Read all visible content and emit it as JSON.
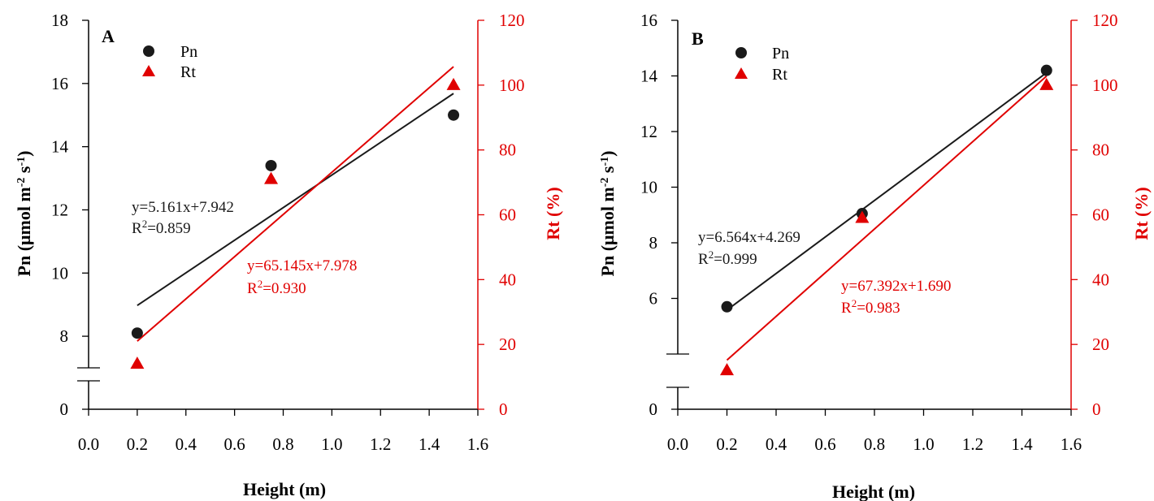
{
  "colors": {
    "pn": "#1a1a1a",
    "rt": "#e00000",
    "axis": "#000000"
  },
  "chart_data": [
    {
      "type": "scatter",
      "panel_label": "A",
      "xlabel": "Height (m)",
      "ylabel": {
        "main": "Pn (μmol m",
        "sup1": "-2",
        "mid": " s",
        "sup2": "-1",
        "end": ")"
      },
      "y2label": "Rt (%)",
      "xlim": [
        0.0,
        1.6
      ],
      "x_ticks": [
        "0.0",
        "0.2",
        "0.4",
        "0.6",
        "0.8",
        "1.0",
        "1.2",
        "1.4",
        "1.6"
      ],
      "ylim_broken": {
        "bottom_label": "0",
        "upper": [
          7,
          18
        ]
      },
      "y_ticks": [
        "0",
        "8",
        "10",
        "12",
        "14",
        "16",
        "18"
      ],
      "y2lim": [
        0,
        120
      ],
      "y2_ticks": [
        "0",
        "20",
        "40",
        "60",
        "80",
        "100",
        "120"
      ],
      "legend": [
        {
          "name": "Pn",
          "marker": "circle"
        },
        {
          "name": "Rt",
          "marker": "triangle"
        }
      ],
      "series": [
        {
          "name": "Pn",
          "axis": "left",
          "x": [
            0.2,
            0.75,
            1.5
          ],
          "y": [
            8.1,
            13.4,
            15.0
          ]
        },
        {
          "name": "Rt",
          "axis": "right",
          "x": [
            0.2,
            0.75,
            1.5
          ],
          "y": [
            14,
            71,
            100
          ]
        }
      ],
      "fits": [
        {
          "series": "Pn",
          "slope": 5.161,
          "intercept": 7.942,
          "x_range": [
            0.2,
            1.5
          ],
          "equation": "y=5.161x+7.942",
          "r2_prefix": "R",
          "r2_value": "=0.859"
        },
        {
          "series": "Rt",
          "slope": 65.145,
          "intercept": 7.978,
          "x_range": [
            0.2,
            1.5
          ],
          "equation": "y=65.145x+7.978",
          "r2_prefix": "R",
          "r2_value": "=0.930"
        }
      ]
    },
    {
      "type": "scatter",
      "panel_label": "B",
      "xlabel": "Height (m)",
      "ylabel": {
        "main": "Pn (μmol m",
        "sup1": "-2",
        "mid": " s",
        "sup2": "-1",
        "end": ")"
      },
      "y2label": "Rt (%)",
      "xlim": [
        0.0,
        1.6
      ],
      "x_ticks": [
        "0.0",
        "0.2",
        "0.4",
        "0.6",
        "0.8",
        "1.0",
        "1.2",
        "1.4",
        "1.6"
      ],
      "ylim_broken": {
        "bottom_label": "0",
        "upper": [
          4,
          16
        ]
      },
      "y_ticks": [
        "0",
        "6",
        "8",
        "10",
        "12",
        "14",
        "16"
      ],
      "y2lim": [
        0,
        120
      ],
      "y2_ticks": [
        "0",
        "20",
        "40",
        "60",
        "80",
        "100",
        "120"
      ],
      "legend": [
        {
          "name": "Pn",
          "marker": "circle"
        },
        {
          "name": "Rt",
          "marker": "triangle"
        }
      ],
      "series": [
        {
          "name": "Pn",
          "axis": "left",
          "x": [
            0.2,
            0.75,
            1.5
          ],
          "y": [
            5.7,
            9.05,
            14.2
          ]
        },
        {
          "name": "Rt",
          "axis": "right",
          "x": [
            0.2,
            0.75,
            1.5
          ],
          "y": [
            12,
            59,
            100
          ]
        }
      ],
      "fits": [
        {
          "series": "Pn",
          "slope": 6.564,
          "intercept": 4.269,
          "x_range": [
            0.2,
            1.5
          ],
          "equation": "y=6.564x+4.269",
          "r2_prefix": "R",
          "r2_value": "=0.999"
        },
        {
          "series": "Rt",
          "slope": 67.392,
          "intercept": 1.69,
          "x_range": [
            0.2,
            1.5
          ],
          "equation": "y=67.392x+1.690",
          "r2_prefix": "R",
          "r2_value": "=0.983"
        }
      ]
    }
  ]
}
